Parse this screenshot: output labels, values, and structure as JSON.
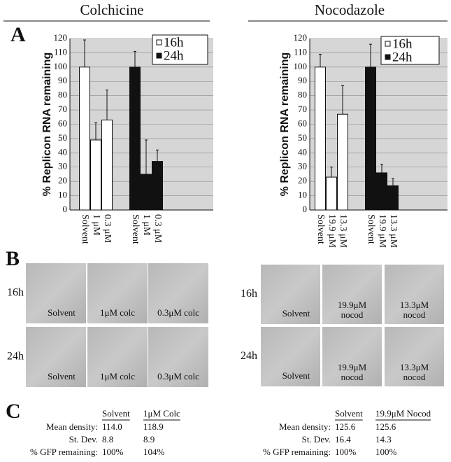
{
  "panels": [
    "A",
    "B",
    "C"
  ],
  "chart_data": [
    {
      "type": "bar",
      "title": "Colchicine",
      "y_label": "% Replicon RNA remaining",
      "categories": [
        "Solvent",
        "1 μM",
        "0.3 μM",
        "Solvent",
        "1 μM",
        "0.3 μM"
      ],
      "series": [
        {
          "name": "16h",
          "color": "#ffffff",
          "values": [
            100,
            49,
            63,
            null,
            null,
            null
          ],
          "errors": [
            19,
            12,
            21,
            null,
            null,
            null
          ]
        },
        {
          "name": "24h",
          "color": "#111111",
          "values": [
            null,
            null,
            null,
            100,
            25,
            34
          ],
          "errors": [
            null,
            null,
            null,
            11,
            24,
            8
          ]
        }
      ],
      "ylim": [
        0,
        120
      ],
      "yticks": [
        0,
        10,
        20,
        30,
        40,
        50,
        60,
        70,
        80,
        90,
        100,
        110,
        120
      ],
      "grid": true,
      "legend": "upper-right"
    },
    {
      "type": "bar",
      "title": "Nocodazole",
      "y_label": "% Replicon RNA remaining",
      "categories": [
        "Solvent",
        "19.9 μM",
        "13.3 μM",
        "Solvent",
        "19.9 μM",
        "13.3 μM"
      ],
      "series": [
        {
          "name": "16h",
          "color": "#ffffff",
          "values": [
            100,
            23,
            67,
            null,
            null,
            null
          ],
          "errors": [
            9,
            7,
            20,
            null,
            null,
            null
          ]
        },
        {
          "name": "24h",
          "color": "#111111",
          "values": [
            null,
            null,
            null,
            100,
            26,
            17
          ],
          "errors": [
            null,
            null,
            null,
            16,
            6,
            5
          ]
        }
      ],
      "ylim": [
        0,
        120
      ],
      "yticks": [
        0,
        10,
        20,
        30,
        40,
        50,
        60,
        70,
        80,
        90,
        100,
        110,
        120
      ],
      "grid": true,
      "legend": "upper-right"
    }
  ],
  "micrographs": [
    {
      "rows": [
        "16h",
        "24h"
      ],
      "cells": [
        "Solvent",
        "1μM colc",
        "0.3μM colc"
      ]
    },
    {
      "rows": [
        "16h",
        "24h"
      ],
      "cells": [
        "Solvent",
        "19.9μM nocod",
        "13.3μM nocod"
      ]
    }
  ],
  "tables": [
    {
      "columns": [
        "Solvent",
        "1μM Colc"
      ],
      "rows": [
        {
          "label": "Mean density:",
          "values": [
            "114.0",
            "118.9"
          ]
        },
        {
          "label": "St. Dev.",
          "values": [
            "8.8",
            "8.9"
          ]
        },
        {
          "label": "% GFP remaining:",
          "values": [
            "100%",
            "104%"
          ]
        }
      ]
    },
    {
      "columns": [
        "Solvent",
        "19.9μM Nocod"
      ],
      "rows": [
        {
          "label": "Mean density:",
          "values": [
            "125.6",
            "125.6"
          ]
        },
        {
          "label": "St. Dev.",
          "values": [
            "16.4",
            "14.3"
          ]
        },
        {
          "label": "% GFP remaining:",
          "values": [
            "100%",
            "100%"
          ]
        }
      ]
    }
  ]
}
